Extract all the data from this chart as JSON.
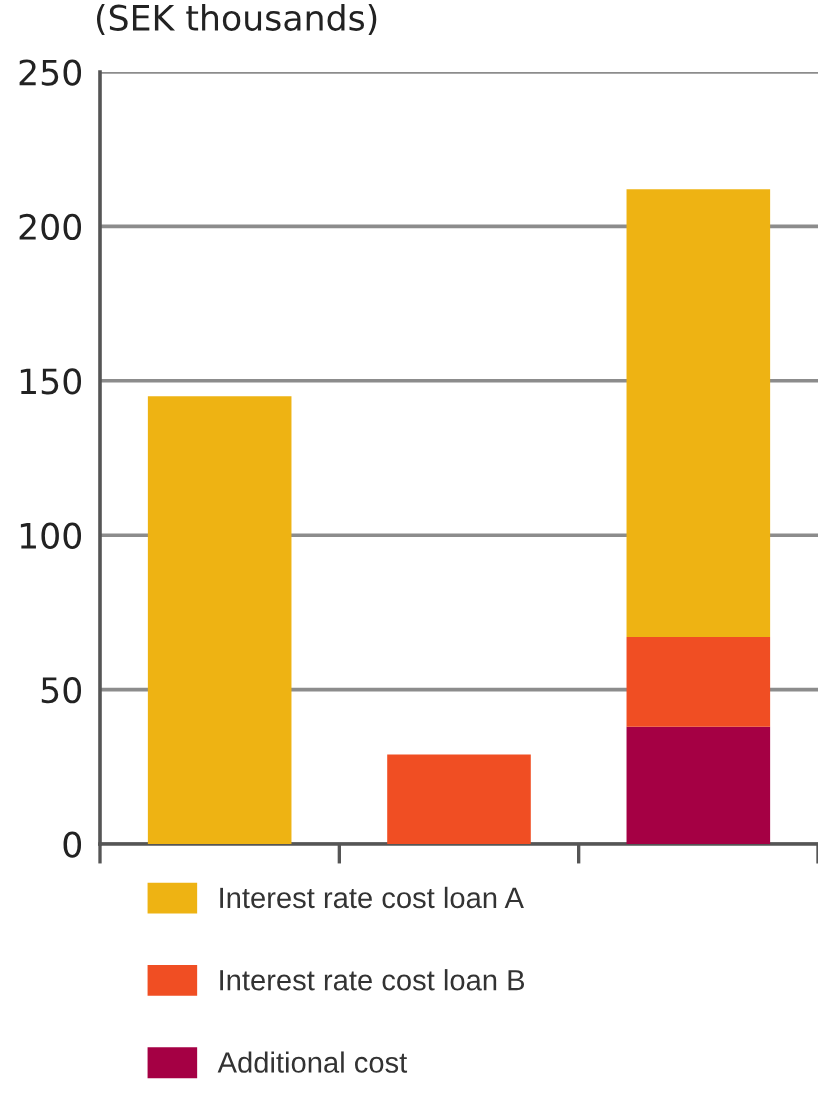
{
  "chart_data": {
    "type": "bar",
    "ylabel": "(SEK thousands)",
    "categories": [
      null,
      null,
      null
    ],
    "stacked": true,
    "series": [
      {
        "name": "Additional cost",
        "color": "#a50044",
        "values": [
          null,
          null,
          38
        ]
      },
      {
        "name": "Interest rate cost loan B",
        "color": "#f04e23",
        "values": [
          null,
          29,
          29
        ]
      },
      {
        "name": "Interest rate cost loan A",
        "color": "#eeb313",
        "values": [
          145,
          null,
          145
        ]
      }
    ],
    "ylim": [
      0,
      250
    ],
    "yticks": [
      0,
      50,
      100,
      150,
      200,
      250
    ],
    "grid": "y",
    "legend": "bottom"
  }
}
